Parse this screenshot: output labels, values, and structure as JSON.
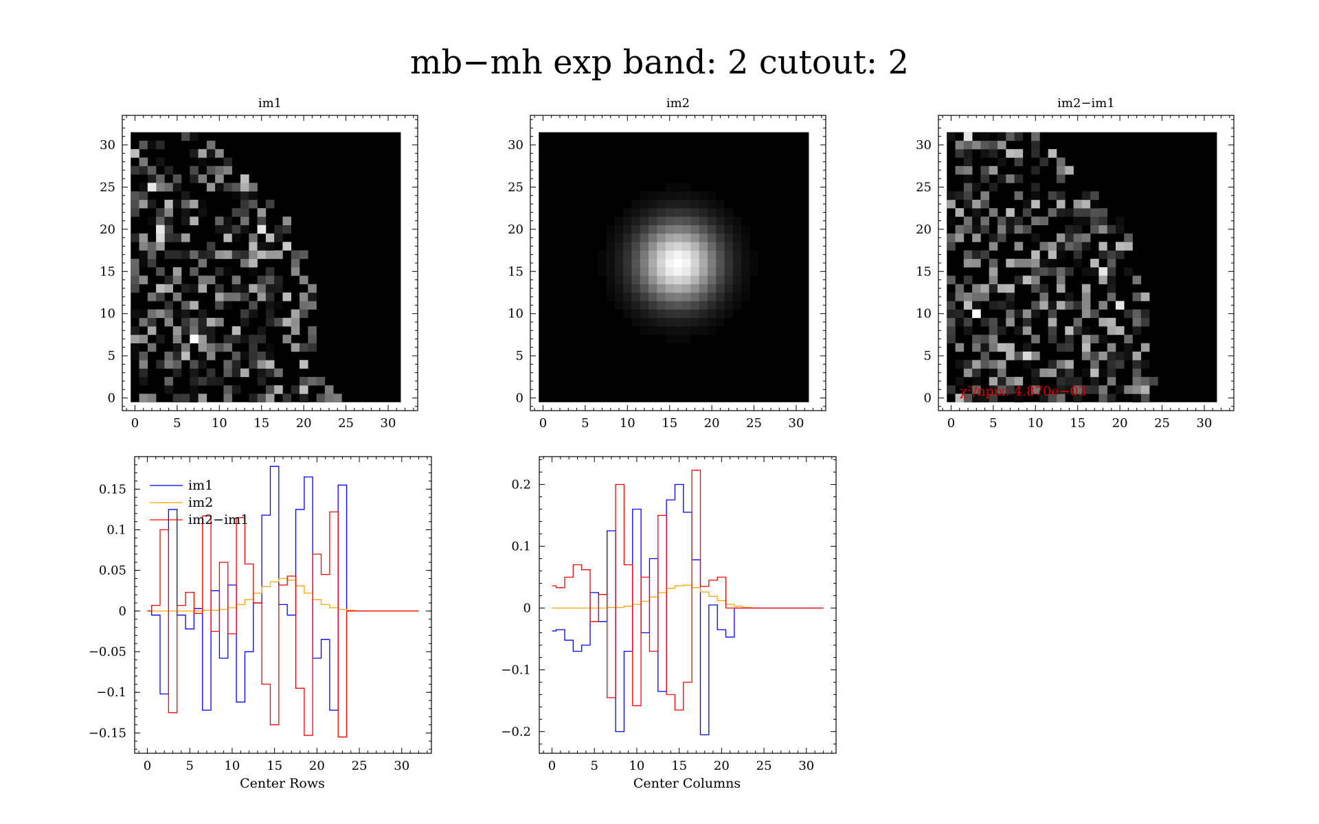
{
  "figure_title": "mb−mh exp band: 2 cutout: 2",
  "colors": {
    "im1": "#0000ff",
    "im2": "#ffa500",
    "diff": "#ff0000",
    "annotation": "#e00000"
  },
  "chart_data": [
    {
      "id": "im1",
      "type": "heatmap",
      "title": "im1",
      "xlim": [
        -1.5,
        33.5
      ],
      "ylim": [
        -1.5,
        33.5
      ],
      "x_ticks": [
        "0",
        "5",
        "10",
        "15",
        "20",
        "25",
        "30"
      ],
      "y_ticks": [
        "0",
        "5",
        "10",
        "15",
        "20",
        "25",
        "30"
      ],
      "grid_size": 32,
      "colormap": "grayscale",
      "pattern": "noise",
      "rows_extent": [
        [
          0,
          0
        ],
        [
          0,
          1
        ],
        [
          1,
          2
        ],
        [
          3,
          4
        ],
        [
          5,
          6
        ],
        [
          7,
          8
        ],
        [
          9,
          10
        ],
        [
          11,
          12
        ],
        [
          13,
          14
        ],
        [
          15,
          16
        ],
        [
          17,
          18
        ],
        [
          19,
          20
        ],
        [
          21,
          22
        ],
        [
          22,
          23
        ],
        [
          23,
          24
        ],
        [
          23,
          24
        ],
        [
          23,
          24
        ],
        [
          22,
          23
        ],
        [
          21,
          22
        ],
        [
          20,
          21
        ],
        [
          19,
          20
        ],
        [
          18,
          19
        ],
        [
          17,
          18
        ],
        [
          16,
          17
        ],
        [
          15,
          16
        ],
        [
          14,
          15
        ],
        [
          13,
          14
        ],
        [
          12,
          13
        ],
        [
          11,
          12
        ],
        [
          10,
          11
        ],
        [
          9,
          10
        ],
        [
          8,
          9
        ]
      ],
      "row_end": [
        24,
        23,
        23,
        22,
        22,
        21,
        21,
        21,
        21,
        21,
        21,
        21,
        21,
        21,
        20,
        20,
        20,
        20,
        19,
        19,
        18,
        18,
        17,
        16,
        15,
        14,
        13,
        12,
        11,
        10,
        9,
        8
      ],
      "max_value": 1.0,
      "highlight_pixels": [
        [
          7,
          7,
          1.0
        ],
        [
          3,
          20,
          0.9
        ],
        [
          3,
          19,
          0.85
        ],
        [
          15,
          20,
          0.9
        ],
        [
          2,
          25,
          0.9
        ],
        [
          18,
          18,
          0.8
        ]
      ]
    },
    {
      "id": "im2",
      "type": "heatmap",
      "title": "im2",
      "xlim": [
        -1.5,
        33.5
      ],
      "ylim": [
        -1.5,
        33.5
      ],
      "x_ticks": [
        "0",
        "5",
        "10",
        "15",
        "20",
        "25",
        "30"
      ],
      "y_ticks": [
        "0",
        "5",
        "10",
        "15",
        "20",
        "25",
        "30"
      ],
      "grid_size": 32,
      "colormap": "grayscale",
      "pattern": "gaussian",
      "center": [
        16,
        16
      ],
      "sigma": 3.0
    },
    {
      "id": "diff",
      "type": "heatmap",
      "title": "im2−im1",
      "xlim": [
        -1.5,
        33.5
      ],
      "ylim": [
        -1.5,
        33.5
      ],
      "x_ticks": [
        "0",
        "5",
        "10",
        "15",
        "20",
        "25",
        "30"
      ],
      "y_ticks": [
        "0",
        "5",
        "10",
        "15",
        "20",
        "25",
        "30"
      ],
      "grid_size": 32,
      "colormap": "grayscale",
      "pattern": "noise",
      "row_end": [
        24,
        24,
        24,
        23,
        23,
        23,
        23,
        23,
        23,
        23,
        23,
        23,
        23,
        23,
        22,
        22,
        22,
        22,
        21,
        21,
        20,
        20,
        19,
        18,
        17,
        16,
        15,
        14,
        13,
        12,
        11,
        10
      ],
      "highlight_pixels": [
        [
          3,
          10,
          1.0
        ],
        [
          18,
          15,
          0.9
        ],
        [
          2,
          31,
          0.9
        ],
        [
          20,
          11,
          0.9
        ],
        [
          9,
          5,
          0.85
        ]
      ],
      "annotation": "χ²/npix: 4.870e−03"
    },
    {
      "id": "rows",
      "type": "line",
      "drawstyle": "steps-mid",
      "xlabel": "Center Rows",
      "xlim": [
        -1.5,
        33.5
      ],
      "ylim": [
        -0.175,
        0.19
      ],
      "x_ticks": [
        0,
        5,
        10,
        15,
        20,
        25,
        30
      ],
      "y_ticks": [
        -0.15,
        -0.1,
        -0.05,
        0,
        0.05,
        0.1,
        0.15
      ],
      "y_tick_labels": [
        "−0.15",
        "−0.1",
        "−0.05",
        "0",
        "0.05",
        "0.1",
        "0.15"
      ],
      "legend": {
        "position": "top-left",
        "entries": [
          "im1",
          "im2",
          "im2−im1"
        ]
      },
      "x": [
        0,
        1,
        2,
        3,
        4,
        5,
        6,
        7,
        8,
        9,
        10,
        11,
        12,
        13,
        14,
        15,
        16,
        17,
        18,
        19,
        20,
        21,
        22,
        23,
        24,
        25,
        26,
        27,
        28,
        29,
        30,
        31,
        32
      ],
      "series": [
        {
          "name": "im1",
          "color": "#0000ff",
          "values": [
            0,
            -0.005,
            -0.102,
            0.125,
            -0.005,
            -0.022,
            0.003,
            -0.122,
            0.025,
            -0.058,
            0.032,
            -0.112,
            -0.05,
            0.01,
            0.118,
            0.178,
            0.008,
            -0.005,
            0.125,
            0.165,
            -0.058,
            -0.035,
            -0.122,
            0.155,
            0,
            0,
            0,
            0,
            0,
            0,
            0,
            0,
            0
          ]
        },
        {
          "name": "im2",
          "color": "#ffa500",
          "values": [
            0,
            0,
            0,
            0,
            0,
            0,
            0,
            0.001,
            0.001,
            0.002,
            0.004,
            0.008,
            0.014,
            0.022,
            0.03,
            0.036,
            0.04,
            0.038,
            0.031,
            0.022,
            0.014,
            0.008,
            0.004,
            0.002,
            0.001,
            0,
            0,
            0,
            0,
            0,
            0,
            0,
            0
          ]
        },
        {
          "name": "im2−im1",
          "color": "#ff0000",
          "values": [
            0,
            0.007,
            0.1,
            -0.125,
            0.007,
            0.023,
            -0.003,
            0.117,
            -0.025,
            0.06,
            -0.028,
            0.115,
            0.058,
            0.01,
            -0.09,
            -0.14,
            0.032,
            0.043,
            -0.095,
            -0.153,
            0.07,
            0.045,
            0.122,
            -0.155,
            0,
            0,
            0,
            0,
            0,
            0,
            0,
            0,
            0
          ]
        }
      ]
    },
    {
      "id": "cols",
      "type": "line",
      "drawstyle": "steps-mid",
      "xlabel": "Center Columns",
      "xlim": [
        -1.5,
        33.5
      ],
      "ylim": [
        -0.235,
        0.245
      ],
      "x_ticks": [
        0,
        5,
        10,
        15,
        20,
        25,
        30
      ],
      "y_ticks": [
        -0.2,
        -0.1,
        0,
        0.1,
        0.2
      ],
      "y_tick_labels": [
        "−0.2",
        "−0.1",
        "0",
        "0.1",
        "0.2"
      ],
      "x": [
        0,
        1,
        2,
        3,
        4,
        5,
        6,
        7,
        8,
        9,
        10,
        11,
        12,
        13,
        14,
        15,
        16,
        17,
        18,
        19,
        20,
        21,
        22,
        23,
        24,
        25,
        26,
        27,
        28,
        29,
        30,
        31,
        32
      ],
      "series": [
        {
          "name": "im1",
          "color": "#0000ff",
          "values": [
            -0.037,
            -0.035,
            -0.052,
            -0.07,
            -0.06,
            0.025,
            -0.022,
            0.125,
            -0.2,
            -0.07,
            0.16,
            -0.04,
            0.08,
            -0.135,
            0.175,
            0.2,
            0.155,
            0.078,
            -0.205,
            0.005,
            -0.035,
            -0.047,
            0,
            0,
            0,
            0,
            0,
            0,
            0,
            0,
            0,
            0,
            0
          ]
        },
        {
          "name": "im2",
          "color": "#ffa500",
          "values": [
            0,
            0,
            0,
            0,
            0,
            0,
            0,
            0.001,
            0.001,
            0.003,
            0.006,
            0.011,
            0.018,
            0.025,
            0.032,
            0.036,
            0.037,
            0.033,
            0.026,
            0.019,
            0.012,
            0.006,
            0.003,
            0.001,
            0,
            0,
            0,
            0,
            0,
            0,
            0,
            0,
            0
          ]
        },
        {
          "name": "im2−im1",
          "color": "#ff0000",
          "values": [
            0.036,
            0.033,
            0.05,
            0.07,
            0.062,
            -0.022,
            0.022,
            -0.145,
            0.2,
            0.07,
            -0.158,
            0.05,
            -0.07,
            0.15,
            -0.14,
            -0.165,
            -0.12,
            0.223,
            0.035,
            0.045,
            0.05,
            0,
            0,
            0,
            0,
            0,
            0,
            0,
            0,
            0,
            0,
            0,
            0
          ]
        }
      ]
    }
  ]
}
